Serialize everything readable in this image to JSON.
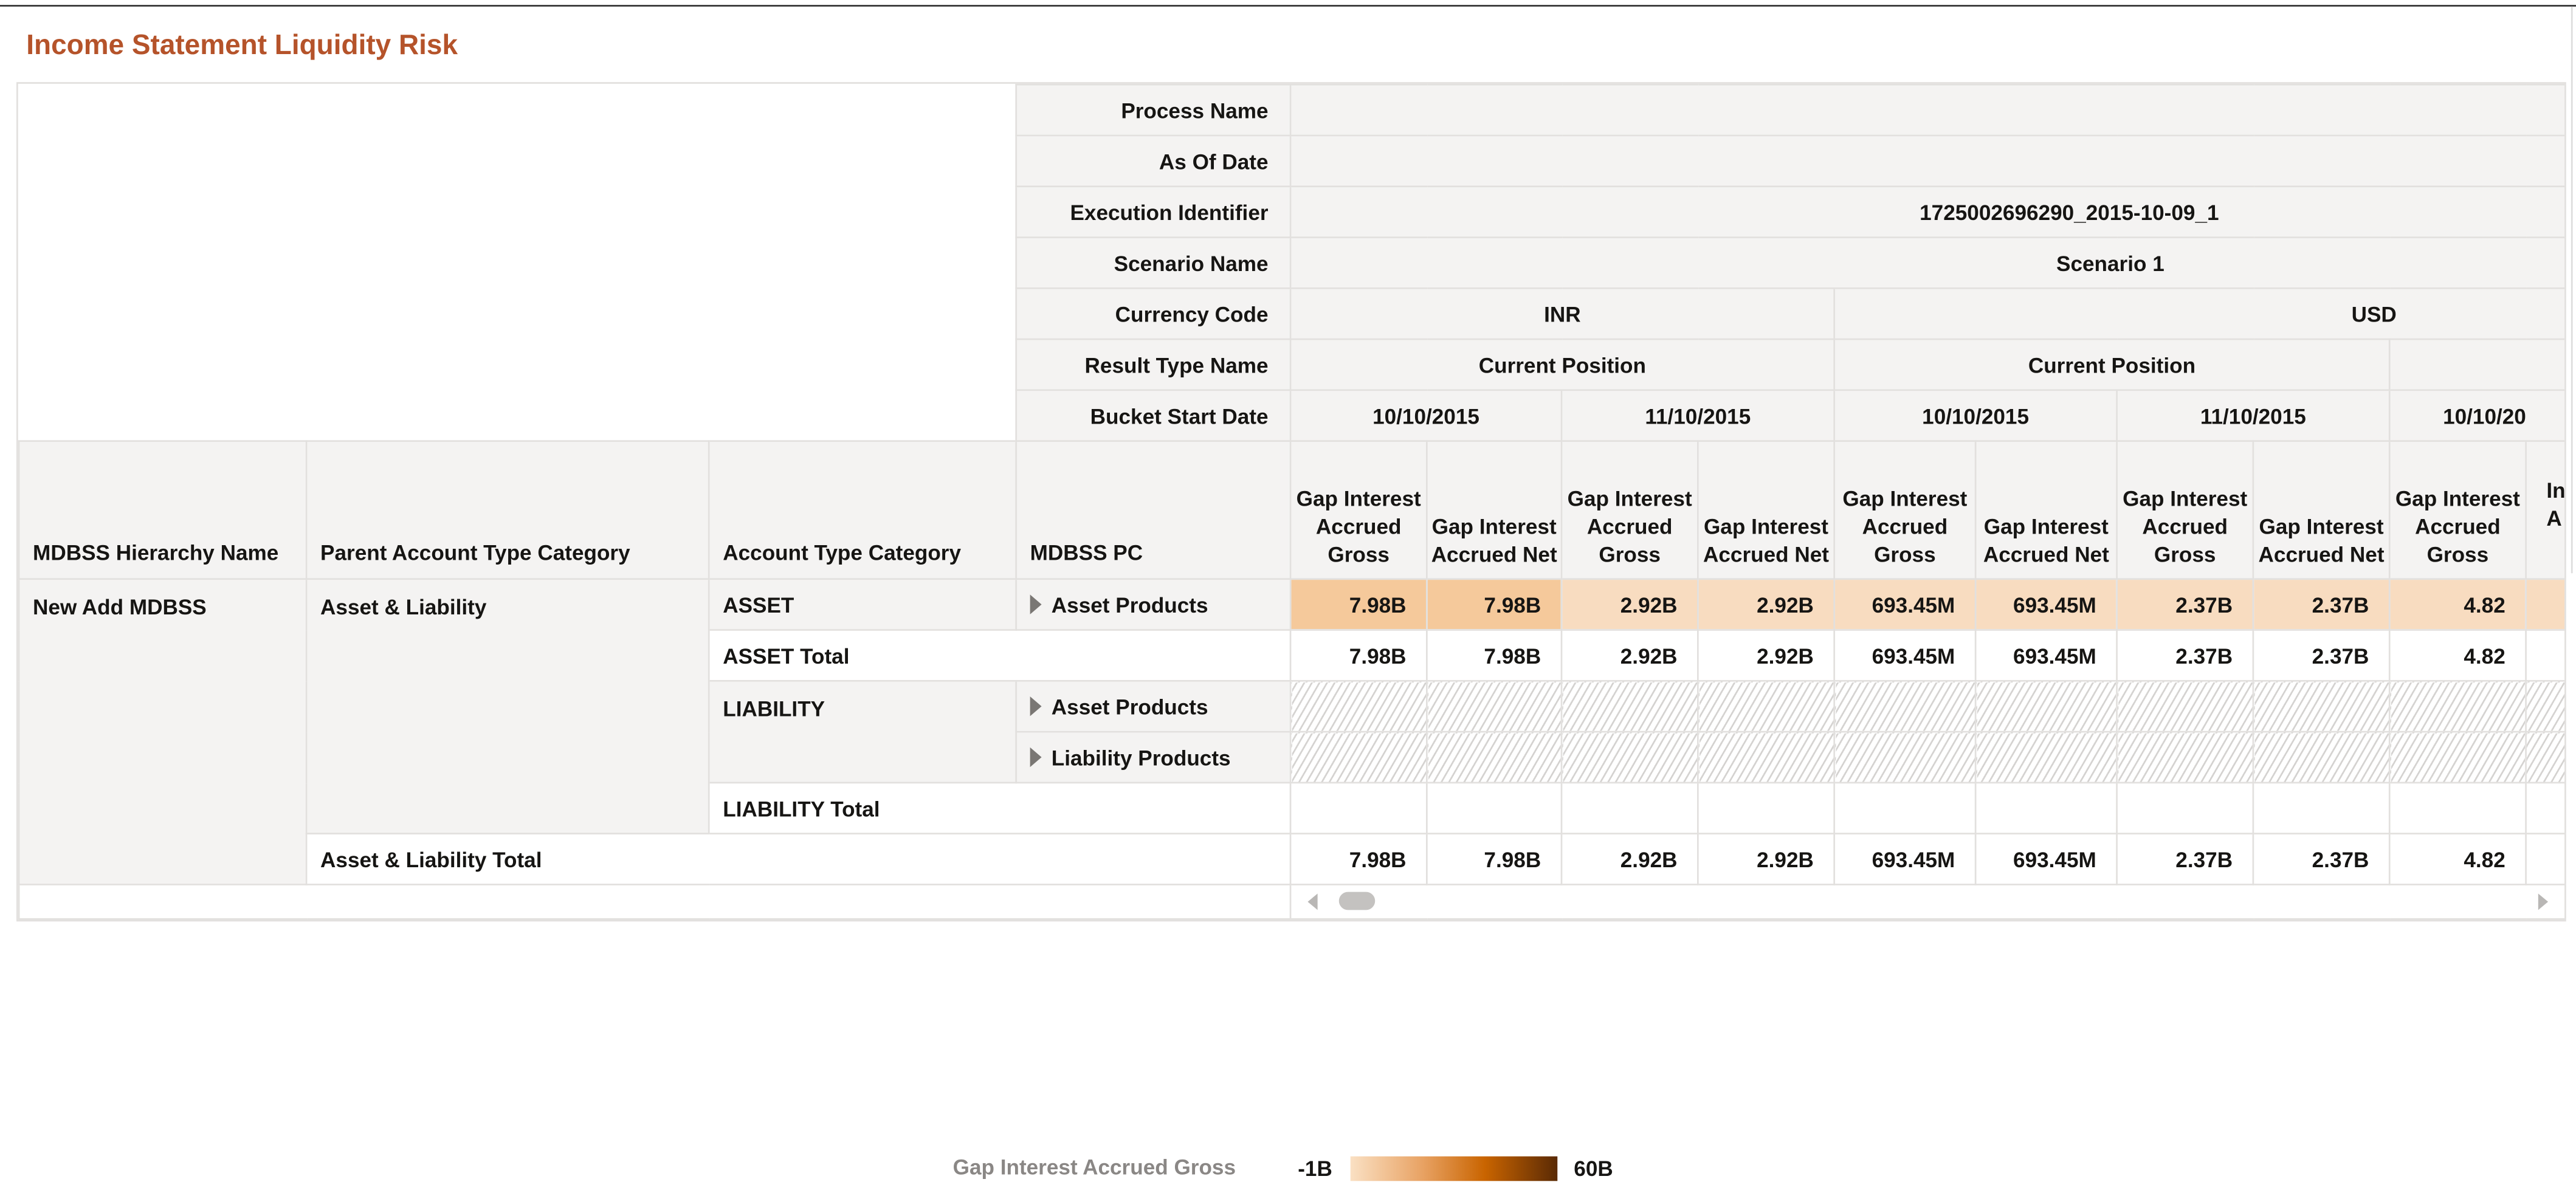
{
  "title": "Income Statement Liquidity Risk",
  "header_rows": {
    "process_name": {
      "label": "Process Name",
      "value": ""
    },
    "as_of_date": {
      "label": "As Of Date",
      "value": ""
    },
    "execution_identifier": {
      "label": "Execution Identifier",
      "value": "1725002696290_2015-10-09_1"
    },
    "scenario_name": {
      "label": "Scenario Name",
      "value": "Scenario 1"
    },
    "currency_code": {
      "label": "Currency Code",
      "values": [
        "INR",
        "USD"
      ]
    },
    "result_type_name": {
      "label": "Result Type Name",
      "values": [
        "Current Position",
        "Current Position",
        ""
      ]
    },
    "bucket_start_date": {
      "label": "Bucket Start Date",
      "values": [
        "10/10/2015",
        "11/10/2015",
        "10/10/2015",
        "11/10/2015",
        "10/10/20"
      ]
    }
  },
  "column_headers": {
    "row_dims": [
      "MDBSS Hierarchy Name",
      "Parent Account Type Category",
      "Account Type Category",
      "MDBSS PC"
    ],
    "measures": [
      "Gap Interest Accrued Gross",
      "Gap Interest Accrued Net",
      "Gap Interest Accrued Gross",
      "Gap Interest Accrued Net",
      "Gap Interest Accrued Gross",
      "Gap Interest Accrued Net",
      "Gap Interest Accrued Gross",
      "Gap Interest Accrued Net",
      "Gap Interest Accrued Gross",
      "In A"
    ]
  },
  "rows": {
    "hierarchy": "New Add MDBSS",
    "parent": "Asset & Liability",
    "asset": "ASSET",
    "asset_pc": "Asset Products",
    "asset_values": [
      "7.98B",
      "7.98B",
      "2.92B",
      "2.92B",
      "693.45M",
      "693.45M",
      "2.37B",
      "2.37B",
      "4.82",
      ""
    ],
    "asset_total_label": "ASSET Total",
    "asset_total_values": [
      "7.98B",
      "7.98B",
      "2.92B",
      "2.92B",
      "693.45M",
      "693.45M",
      "2.37B",
      "2.37B",
      "4.82",
      ""
    ],
    "liability": "LIABILITY",
    "liability_pc": [
      "Asset Products",
      "Liability Products"
    ],
    "liability_total_label": "LIABILITY Total",
    "grand_total_label": "Asset & Liability Total",
    "grand_total_values": [
      "7.98B",
      "7.98B",
      "2.92B",
      "2.92B",
      "693.45M",
      "693.45M",
      "2.37B",
      "2.37B",
      "4.82",
      ""
    ]
  },
  "legend": {
    "measure": "Gap Interest Accrued Gross",
    "min": "-1B",
    "max": "60B",
    "colors": [
      "#fae0c3",
      "#e8a263",
      "#c96400",
      "#5a2a05"
    ]
  },
  "colors": {
    "title": "#b5532a",
    "cell_high": "#f5c99b",
    "cell_mid": "#f8dcc0",
    "header_bg": "#f4f3f2"
  }
}
